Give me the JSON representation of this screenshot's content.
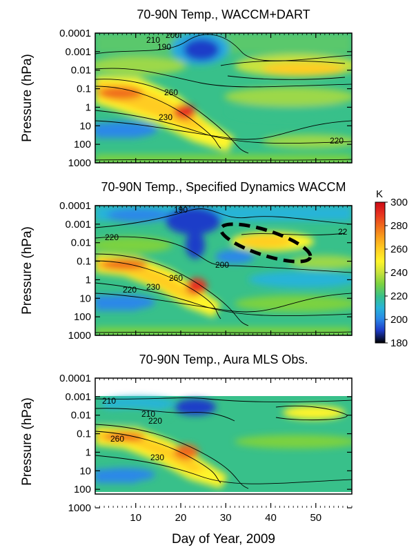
{
  "figure": {
    "xlabel": "Day of Year, 2009",
    "colorbar_unit": "K",
    "colorbar_ticks": [
      "300",
      "280",
      "260",
      "240",
      "220",
      "200",
      "180"
    ]
  },
  "chart_data": [
    {
      "type": "heatmap",
      "title": "70-90N Temp., WACCM+DART",
      "ylabel": "Pressure (hPa)",
      "x_ticks": [
        10,
        20,
        30,
        40,
        50
      ],
      "xlim": [
        1,
        58
      ],
      "y_ticks": [
        "0.0001",
        "0.001",
        "0.01",
        "0.1",
        "1",
        "10",
        "100",
        "1000"
      ],
      "y_scale": "log",
      "contour_labels": [
        "210",
        "200",
        "190",
        "260",
        "230",
        "220"
      ]
    },
    {
      "type": "heatmap",
      "title": "70-90N Temp., Specified Dynamics WACCM",
      "ylabel": "Pressure (hPa)",
      "x_ticks": [
        10,
        20,
        30,
        40,
        50
      ],
      "xlim": [
        1,
        58
      ],
      "y_ticks": [
        "0.0001",
        "0.001",
        "0.01",
        "0.1",
        "1",
        "10",
        "100",
        "1000"
      ],
      "y_scale": "log",
      "contour_labels": [
        "190",
        "220",
        "200",
        "260",
        "220",
        "230",
        "22"
      ],
      "annotation": "dashed ellipse around warm region near days 30-48"
    },
    {
      "type": "heatmap",
      "title": "70-90N Temp., Aura MLS Obs.",
      "ylabel": "Pressure (hPa)",
      "x_ticks": [
        10,
        20,
        30,
        40,
        50
      ],
      "xlim": [
        1,
        58
      ],
      "y_ticks": [
        "0.0001",
        "0.001",
        "0.01",
        "0.1",
        "1",
        "10",
        "100",
        "1000"
      ],
      "y_scale": "log",
      "contour_labels": [
        "210",
        "210",
        "220",
        "260",
        "230"
      ]
    }
  ],
  "colorscale": {
    "range": [
      180,
      300
    ],
    "stops": [
      "#000000",
      "#1e3cc8",
      "#2a88e8",
      "#28b4d8",
      "#38c08a",
      "#7cd240",
      "#c8e23c",
      "#fff52a",
      "#ffcc22",
      "#f9a01c",
      "#f06b1c",
      "#e63020",
      "#cc0a14"
    ]
  }
}
